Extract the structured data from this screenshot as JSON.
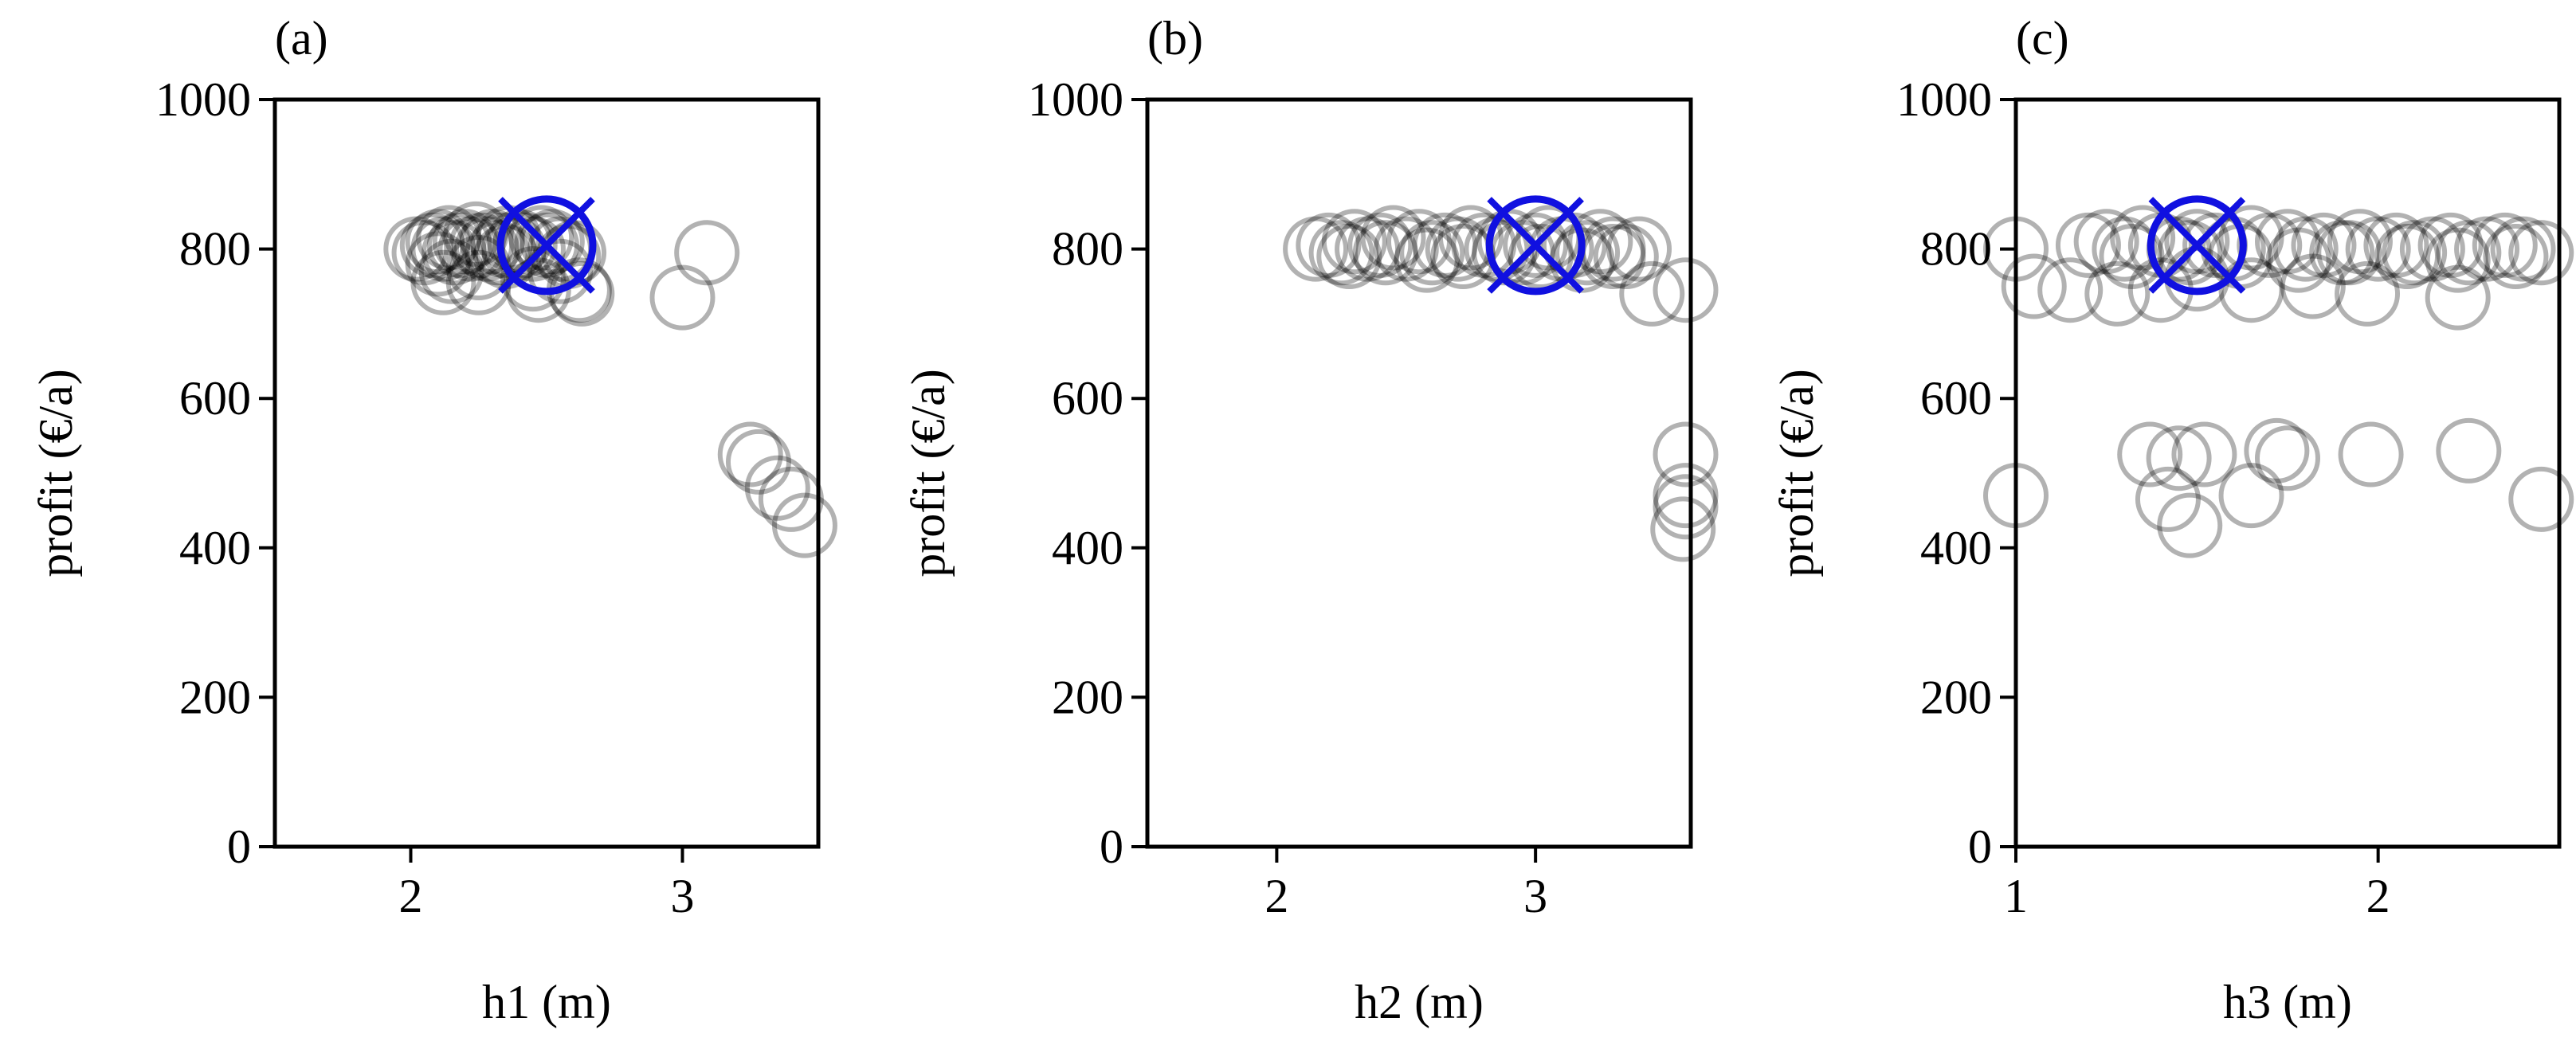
{
  "chart_data": [
    {
      "type": "scatter",
      "panel_label": "(a)",
      "xlabel": "h1 (m)",
      "ylabel": "profit (€/a)",
      "xlim": [
        1.5,
        3.5
      ],
      "ylim": [
        0,
        1000
      ],
      "xticks": [
        2,
        3
      ],
      "yticks": [
        0,
        200,
        400,
        600,
        800,
        1000
      ],
      "marker_color": "#000000",
      "highlight_color": "#1010e0",
      "samples": {
        "x": [
          2.02,
          2.05,
          2.08,
          2.1,
          2.12,
          2.14,
          2.16,
          2.18,
          2.2,
          2.22,
          2.24,
          2.26,
          2.28,
          2.3,
          2.32,
          2.34,
          2.36,
          2.38,
          2.4,
          2.42,
          2.45,
          2.48,
          2.5,
          2.52,
          2.55,
          2.58,
          2.6,
          2.1,
          2.15,
          2.25,
          2.35,
          2.45,
          2.55,
          2.62,
          2.25,
          2.12,
          2.47,
          2.63,
          3.0,
          3.09,
          3.25,
          3.28,
          3.35,
          3.4,
          3.45
        ],
        "y": [
          800,
          795,
          805,
          810,
          800,
          815,
          795,
          805,
          810,
          800,
          820,
          805,
          800,
          810,
          795,
          805,
          815,
          800,
          810,
          805,
          800,
          815,
          805,
          810,
          800,
          790,
          795,
          780,
          770,
          775,
          790,
          760,
          770,
          745,
          755,
          755,
          745,
          740,
          735,
          795,
          525,
          515,
          480,
          465,
          430
        ]
      },
      "best": {
        "x": 2.5,
        "y": 805
      }
    },
    {
      "type": "scatter",
      "panel_label": "(b)",
      "xlabel": "h2 (m)",
      "ylabel": "profit (€/a)",
      "xlim": [
        1.5,
        3.6
      ],
      "ylim": [
        0,
        1000
      ],
      "xticks": [
        2,
        3
      ],
      "yticks": [
        0,
        200,
        400,
        600,
        800,
        1000
      ],
      "marker_color": "#000000",
      "highlight_color": "#1010e0",
      "samples": {
        "x": [
          2.15,
          2.2,
          2.25,
          2.3,
          2.35,
          2.4,
          2.45,
          2.5,
          2.55,
          2.6,
          2.65,
          2.7,
          2.75,
          2.8,
          2.85,
          2.9,
          2.95,
          3.0,
          3.05,
          3.1,
          3.15,
          3.2,
          3.25,
          3.3,
          3.35,
          3.4,
          2.28,
          2.42,
          2.58,
          2.72,
          2.88,
          3.02,
          3.18,
          3.3,
          3.45,
          3.58,
          3.58,
          3.58,
          3.58,
          3.57
        ],
        "y": [
          800,
          805,
          795,
          810,
          800,
          805,
          815,
          800,
          810,
          795,
          805,
          800,
          815,
          805,
          800,
          810,
          795,
          805,
          815,
          800,
          805,
          795,
          810,
          800,
          790,
          800,
          790,
          795,
          785,
          790,
          795,
          790,
          785,
          790,
          740,
          745,
          525,
          470,
          455,
          425
        ]
      },
      "best": {
        "x": 3.0,
        "y": 805
      }
    },
    {
      "type": "scatter",
      "panel_label": "(c)",
      "xlabel": "h3 (m)",
      "ylabel": "profit (€/a)",
      "xlim": [
        1.0,
        2.5
      ],
      "ylim": [
        0,
        1000
      ],
      "xticks": [
        1,
        2
      ],
      "yticks": [
        0,
        200,
        400,
        600,
        800,
        1000
      ],
      "marker_color": "#000000",
      "highlight_color": "#1010e0",
      "samples": {
        "x": [
          1.2,
          1.25,
          1.3,
          1.35,
          1.4,
          1.45,
          1.5,
          1.55,
          1.6,
          1.65,
          1.7,
          1.75,
          1.8,
          1.85,
          1.9,
          1.95,
          2.0,
          2.05,
          2.1,
          2.15,
          2.2,
          2.25,
          2.3,
          2.35,
          2.4,
          2.45,
          1.32,
          1.48,
          1.62,
          1.78,
          1.92,
          2.08,
          2.22,
          2.38,
          1.0,
          1.05,
          1.15,
          1.28,
          1.4,
          1.5,
          1.65,
          1.82,
          1.97,
          2.22,
          1.0,
          1.37,
          1.42,
          1.45,
          1.48,
          1.52,
          1.65,
          1.72,
          1.75,
          1.98,
          2.25,
          2.45
        ],
        "y": [
          805,
          810,
          800,
          815,
          805,
          800,
          810,
          805,
          800,
          815,
          805,
          810,
          800,
          805,
          795,
          810,
          800,
          805,
          795,
          800,
          805,
          795,
          800,
          805,
          800,
          795,
          790,
          795,
          790,
          785,
          795,
          790,
          785,
          790,
          800,
          750,
          745,
          740,
          745,
          760,
          745,
          750,
          740,
          735,
          470,
          525,
          465,
          520,
          430,
          525,
          470,
          530,
          520,
          525,
          530,
          465
        ]
      },
      "best": {
        "x": 1.5,
        "y": 805
      }
    }
  ]
}
